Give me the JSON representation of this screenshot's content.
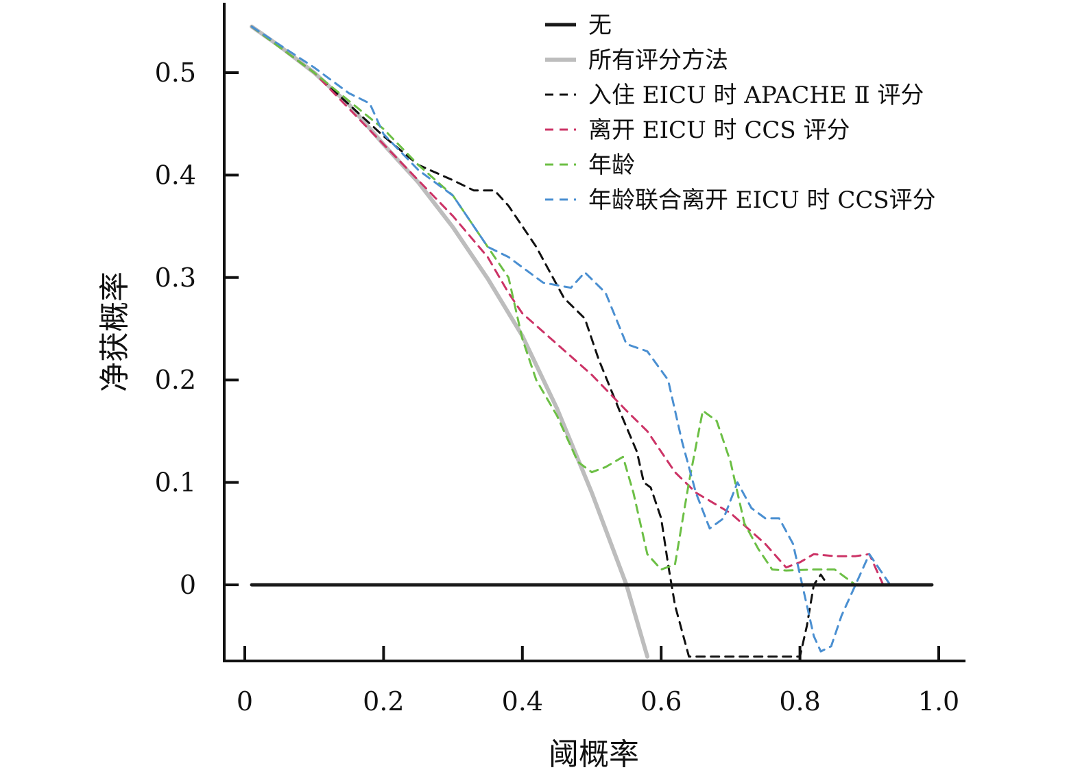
{
  "chart_data": {
    "type": "line",
    "title": "",
    "xlabel": "阈概率",
    "ylabel": "净获概率",
    "xlim": [
      -0.015,
      1.035
    ],
    "ylim": [
      -0.074,
      0.565
    ],
    "xticks": [
      0,
      0.2,
      0.4,
      0.6,
      0.8,
      1.0
    ],
    "xtick_labels": [
      "0",
      "0.2",
      "0.4",
      "0.6",
      "0.8",
      "1.0"
    ],
    "yticks": [
      0,
      0.1,
      0.2,
      0.3,
      0.4,
      0.5
    ],
    "ytick_labels": [
      "0",
      "0.1",
      "0.2",
      "0.3",
      "0.4",
      "0.5"
    ],
    "grid": false,
    "legend_position": "top-right",
    "series": [
      {
        "name": "无",
        "color": "#1a1a1a",
        "style": "solid",
        "x": [
          0.01,
          0.99
        ],
        "y": [
          0,
          0
        ]
      },
      {
        "name": "所有评分方法",
        "color": "#bdbdbd",
        "style": "solid",
        "x": [
          0.01,
          0.05,
          0.1,
          0.15,
          0.2,
          0.25,
          0.3,
          0.35,
          0.4,
          0.45,
          0.5,
          0.55,
          0.58
        ],
        "y": [
          0.545,
          0.526,
          0.5,
          0.469,
          0.43,
          0.393,
          0.349,
          0.299,
          0.243,
          0.172,
          0.09,
          0.0,
          -0.07
        ]
      },
      {
        "name": "入住 EICU 时 APACHE Ⅱ 评分",
        "color": "#111111",
        "style": "dashed",
        "x": [
          0.01,
          0.1,
          0.2,
          0.25,
          0.3,
          0.33,
          0.36,
          0.38,
          0.42,
          0.46,
          0.49,
          0.51,
          0.54,
          0.565,
          0.575,
          0.585,
          0.6,
          0.61,
          0.62,
          0.64,
          0.8,
          0.81,
          0.82,
          0.83,
          0.835
        ],
        "y": [
          0.545,
          0.5,
          0.438,
          0.41,
          0.395,
          0.385,
          0.385,
          0.37,
          0.33,
          0.28,
          0.26,
          0.22,
          0.17,
          0.13,
          0.1,
          0.095,
          0.065,
          0.02,
          -0.02,
          -0.07,
          -0.07,
          -0.04,
          0.0,
          0.01,
          0.005
        ]
      },
      {
        "name": "离开 EICU 时 CCS 评分",
        "color": "#cc3366",
        "style": "dashed",
        "x": [
          0.01,
          0.1,
          0.2,
          0.25,
          0.3,
          0.35,
          0.38,
          0.4,
          0.45,
          0.5,
          0.55,
          0.58,
          0.62,
          0.65,
          0.7,
          0.75,
          0.78,
          0.8,
          0.82,
          0.85,
          0.88,
          0.9,
          0.92,
          0.95,
          0.99
        ],
        "y": [
          0.545,
          0.5,
          0.43,
          0.395,
          0.36,
          0.32,
          0.285,
          0.265,
          0.235,
          0.205,
          0.17,
          0.15,
          0.11,
          0.09,
          0.07,
          0.04,
          0.017,
          0.022,
          0.03,
          0.028,
          0.028,
          0.03,
          0.0,
          0.0,
          0.0
        ]
      },
      {
        "name": "年龄",
        "color": "#6cbf45",
        "style": "dashed",
        "x": [
          0.01,
          0.1,
          0.2,
          0.25,
          0.3,
          0.35,
          0.38,
          0.4,
          0.42,
          0.45,
          0.48,
          0.5,
          0.52,
          0.545,
          0.56,
          0.58,
          0.6,
          0.62,
          0.64,
          0.66,
          0.68,
          0.7,
          0.72,
          0.74,
          0.76,
          0.78,
          0.82,
          0.85,
          0.88,
          0.9,
          0.95,
          0.99
        ],
        "y": [
          0.545,
          0.5,
          0.445,
          0.41,
          0.38,
          0.33,
          0.3,
          0.24,
          0.2,
          0.165,
          0.12,
          0.11,
          0.115,
          0.125,
          0.09,
          0.03,
          0.015,
          0.02,
          0.1,
          0.17,
          0.16,
          0.12,
          0.06,
          0.035,
          0.015,
          0.014,
          0.015,
          0.015,
          0.0,
          0.0,
          0.0,
          0.0
        ]
      },
      {
        "name": "年龄联合离开 EICU 时 CCS评分",
        "color": "#4a8fd1",
        "style": "dashed",
        "x": [
          0.01,
          0.1,
          0.15,
          0.18,
          0.2,
          0.25,
          0.3,
          0.35,
          0.38,
          0.4,
          0.43,
          0.47,
          0.49,
          0.52,
          0.55,
          0.58,
          0.61,
          0.63,
          0.65,
          0.67,
          0.69,
          0.71,
          0.73,
          0.75,
          0.77,
          0.79,
          0.8,
          0.82,
          0.83,
          0.845,
          0.86,
          0.88,
          0.9,
          0.915,
          0.93,
          0.95,
          0.99
        ],
        "y": [
          0.545,
          0.505,
          0.48,
          0.47,
          0.44,
          0.405,
          0.38,
          0.33,
          0.32,
          0.31,
          0.295,
          0.29,
          0.305,
          0.285,
          0.235,
          0.228,
          0.2,
          0.14,
          0.09,
          0.055,
          0.065,
          0.1,
          0.075,
          0.065,
          0.065,
          0.04,
          0.01,
          -0.05,
          -0.065,
          -0.06,
          -0.03,
          0.0,
          0.03,
          0.015,
          0.0,
          0.0,
          0.0
        ]
      }
    ]
  }
}
